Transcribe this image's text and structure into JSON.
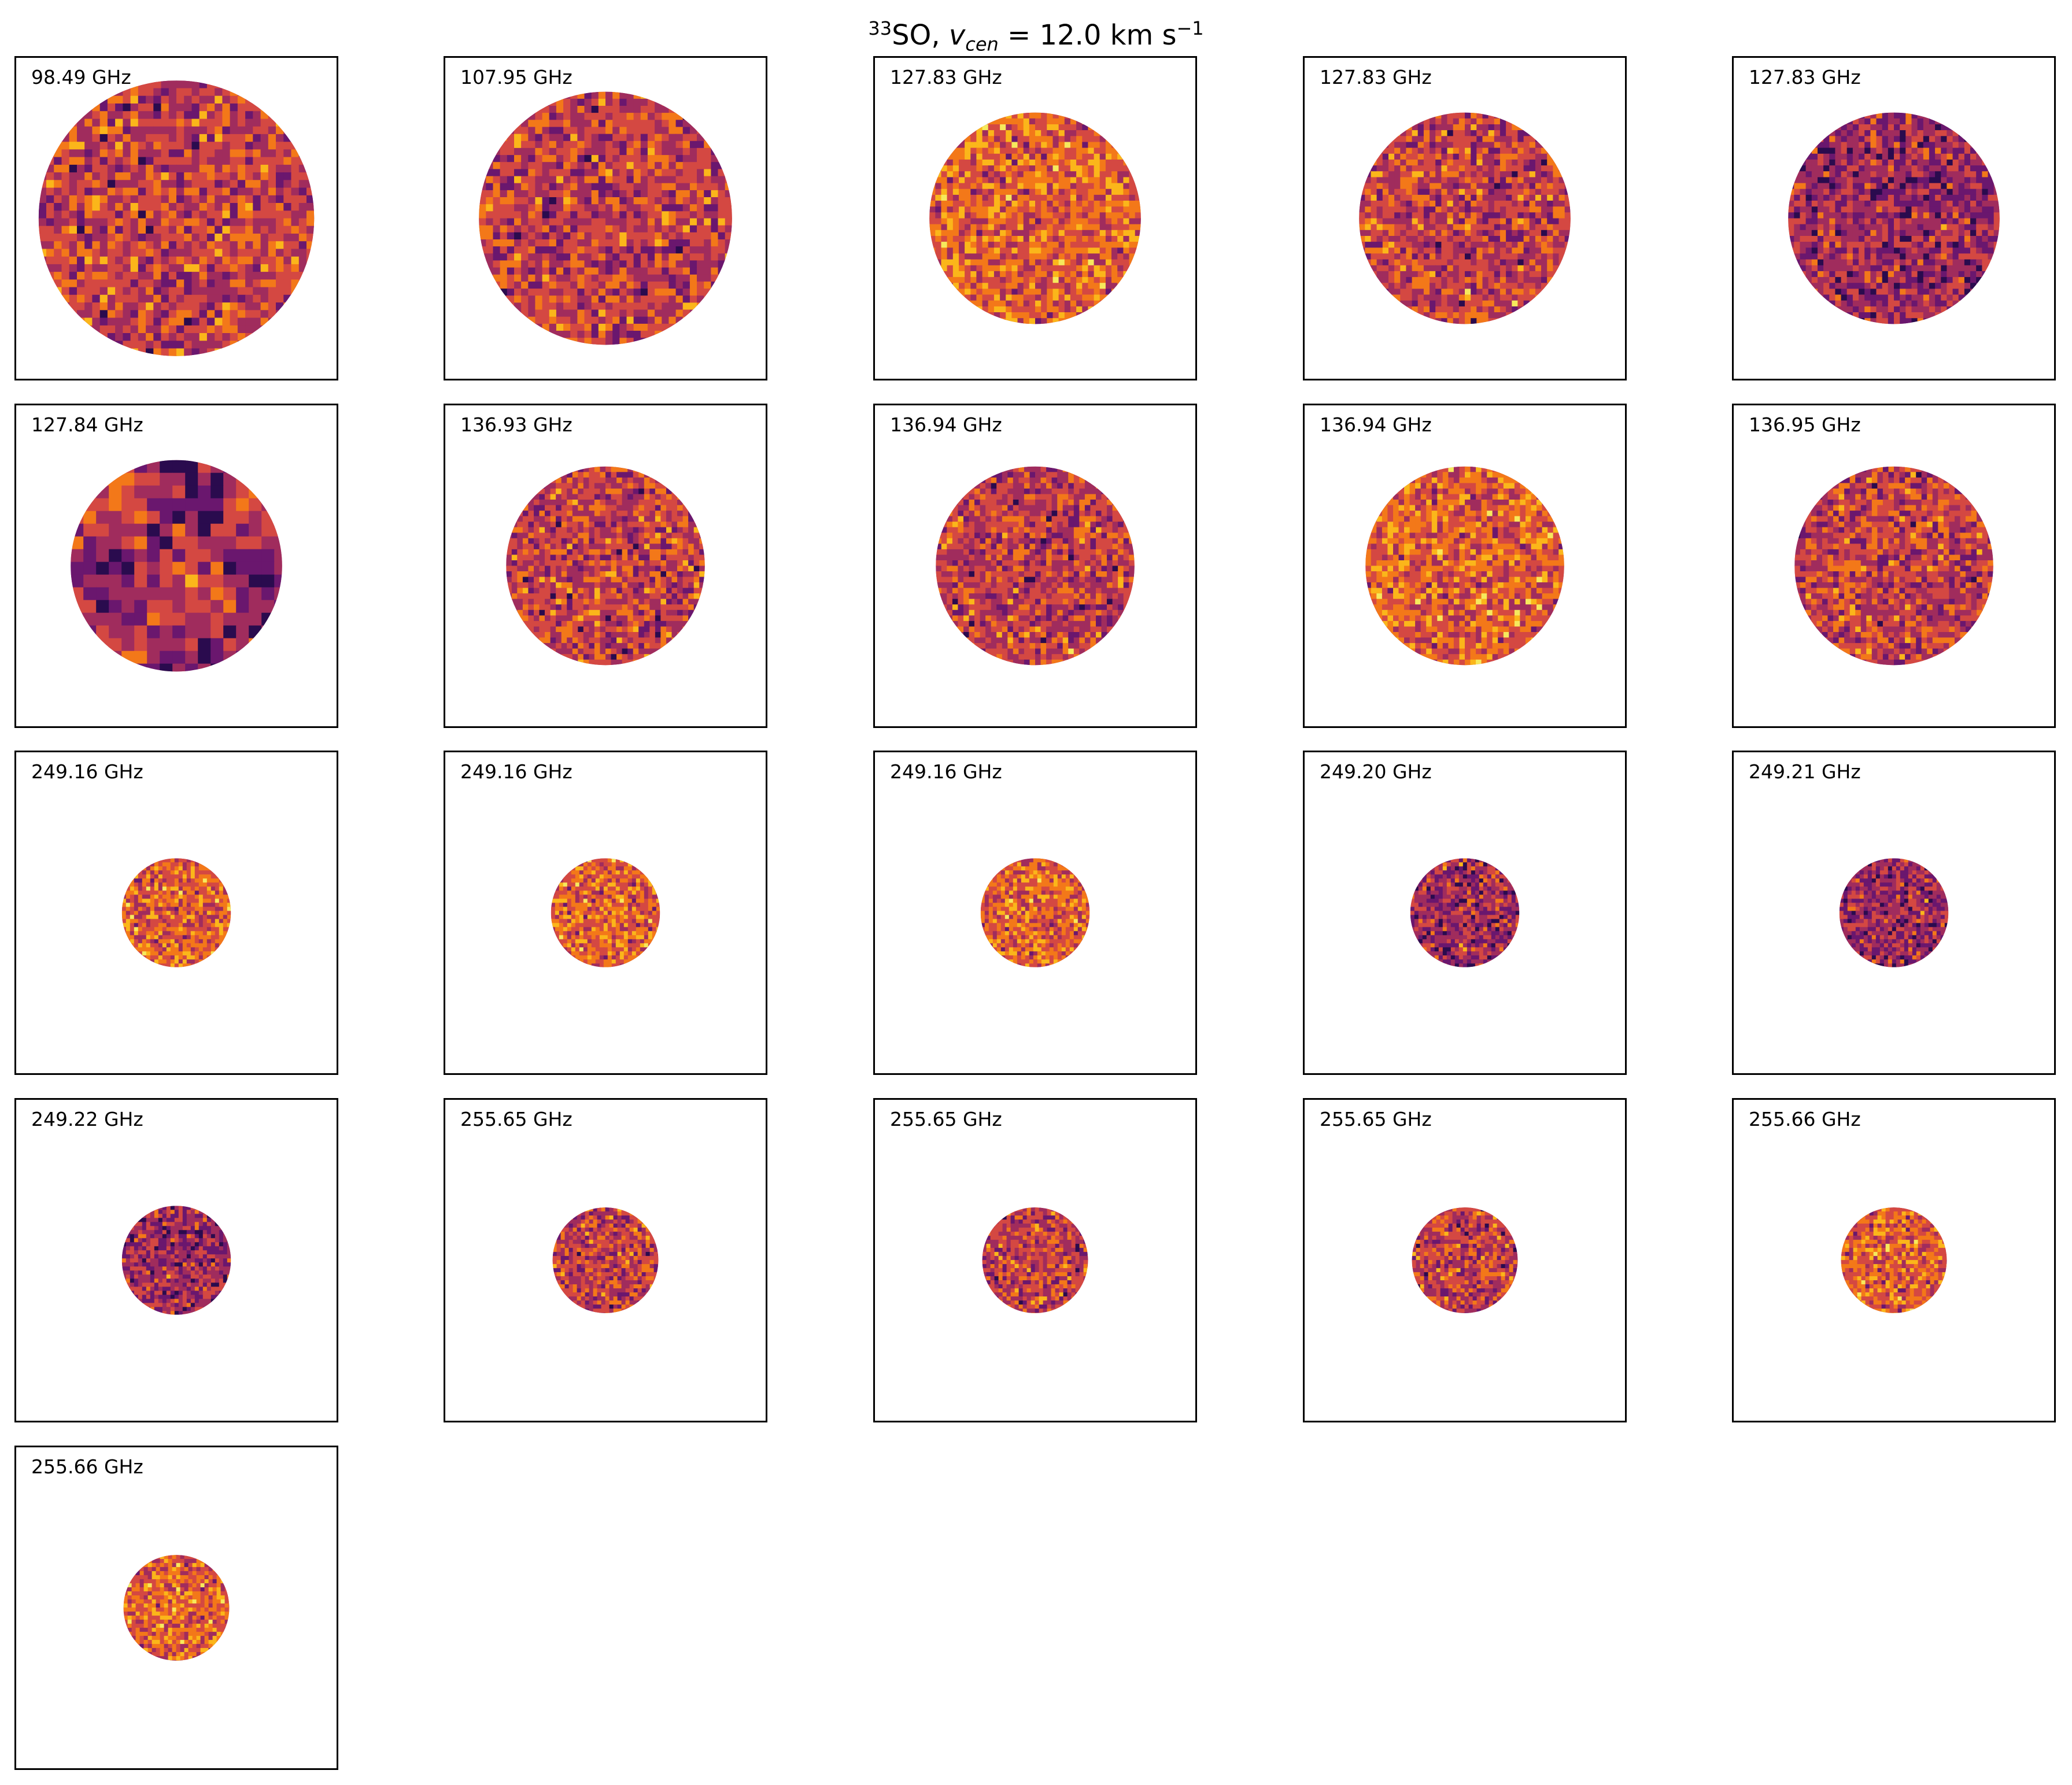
{
  "chart_data": {
    "type": "heatmap",
    "title": {
      "isotope": "33",
      "species": "SO, ",
      "var": "v",
      "var_sub": "cen",
      "rest": " = 12.0 km s",
      "exp": "−1"
    },
    "colormap": "inferno",
    "colors": [
      "#2a0b4e",
      "#6a176e",
      "#a02c5d",
      "#d44842",
      "#f37819",
      "#fbb61a",
      "#f6e95c"
    ],
    "panels": [
      {
        "label": "98.49 GHz",
        "beam_fraction": 0.86,
        "stretch": "low"
      },
      {
        "label": "107.95 GHz",
        "beam_fraction": 0.79,
        "stretch": "low"
      },
      {
        "label": "127.83 GHz",
        "beam_fraction": 0.66,
        "stretch": "high"
      },
      {
        "label": "127.83 GHz",
        "beam_fraction": 0.66,
        "stretch": "mid"
      },
      {
        "label": "127.83 GHz",
        "beam_fraction": 0.66,
        "stretch": "dark"
      },
      {
        "label": "127.84 GHz",
        "beam_fraction": 0.66,
        "stretch": "blotchy"
      },
      {
        "label": "136.93 GHz",
        "beam_fraction": 0.62,
        "stretch": "mid"
      },
      {
        "label": "136.94 GHz",
        "beam_fraction": 0.62,
        "stretch": "mid"
      },
      {
        "label": "136.94 GHz",
        "beam_fraction": 0.62,
        "stretch": "high"
      },
      {
        "label": "136.95 GHz",
        "beam_fraction": 0.62,
        "stretch": "mid"
      },
      {
        "label": "249.16 GHz",
        "beam_fraction": 0.34,
        "stretch": "high"
      },
      {
        "label": "249.16 GHz",
        "beam_fraction": 0.34,
        "stretch": "high"
      },
      {
        "label": "249.16 GHz",
        "beam_fraction": 0.34,
        "stretch": "high"
      },
      {
        "label": "249.20 GHz",
        "beam_fraction": 0.34,
        "stretch": "dark"
      },
      {
        "label": "249.21 GHz",
        "beam_fraction": 0.34,
        "stretch": "dark"
      },
      {
        "label": "249.22 GHz",
        "beam_fraction": 0.34,
        "stretch": "dark"
      },
      {
        "label": "255.65 GHz",
        "beam_fraction": 0.33,
        "stretch": "mid"
      },
      {
        "label": "255.65 GHz",
        "beam_fraction": 0.33,
        "stretch": "mid"
      },
      {
        "label": "255.65 GHz",
        "beam_fraction": 0.33,
        "stretch": "mid"
      },
      {
        "label": "255.66 GHz",
        "beam_fraction": 0.33,
        "stretch": "high"
      },
      {
        "label": "255.66 GHz",
        "beam_fraction": 0.33,
        "stretch": "high"
      }
    ]
  }
}
